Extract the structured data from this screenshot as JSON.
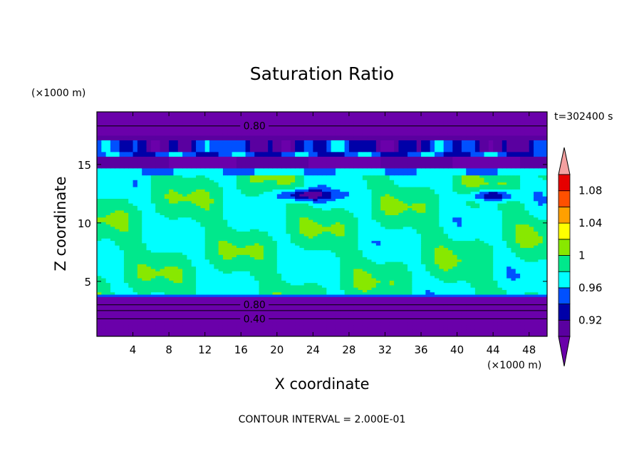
{
  "chart_data": {
    "type": "heatmap",
    "title": "Saturation Ratio",
    "xlabel": "X coordinate",
    "ylabel": "Z coordinate",
    "x_unit": "(×1000 m)",
    "y_unit": "(×1000 m)",
    "time_label": "t=302400 s",
    "footer": "CONTOUR INTERVAL = 2.000E-01",
    "xlim": [
      0,
      50
    ],
    "ylim": [
      0.3,
      19.5
    ],
    "x_ticks": [
      {
        "value": 4,
        "label": "4"
      },
      {
        "value": 8,
        "label": "8"
      },
      {
        "value": 12,
        "label": "12"
      },
      {
        "value": 16,
        "label": "16"
      },
      {
        "value": 20,
        "label": "20"
      },
      {
        "value": 24,
        "label": "24"
      },
      {
        "value": 28,
        "label": "28"
      },
      {
        "value": 32,
        "label": "32"
      },
      {
        "value": 36,
        "label": "36"
      },
      {
        "value": 40,
        "label": "40"
      },
      {
        "value": 44,
        "label": "44"
      },
      {
        "value": 48,
        "label": "48"
      }
    ],
    "y_ticks": [
      {
        "value": 5,
        "label": "5"
      },
      {
        "value": 10,
        "label": "10"
      },
      {
        "value": 15,
        "label": "15"
      }
    ],
    "colorbar": {
      "levels": [
        0.9,
        0.92,
        0.94,
        0.96,
        0.98,
        1.0,
        1.02,
        1.04,
        1.06,
        1.08,
        1.1
      ],
      "colors": [
        "#5a00a0",
        "#0000a8",
        "#0050ff",
        "#00ffff",
        "#00e88c",
        "#88e800",
        "#ffff00",
        "#ffa000",
        "#ff5000",
        "#e60000"
      ],
      "under_color": "#6a00aa",
      "over_color": "#f4a0a0",
      "labels": [
        {
          "value": 0.92,
          "label": "0.92"
        },
        {
          "value": 0.96,
          "label": "0.96"
        },
        {
          "value": 1.0,
          "label": "1"
        },
        {
          "value": 1.04,
          "label": "1.04"
        },
        {
          "value": 1.08,
          "label": "1.08"
        }
      ]
    },
    "contour_labels": [
      {
        "text": "0.80",
        "x": 17.5,
        "z": 18.3
      },
      {
        "text": "0.80",
        "x": 17.5,
        "z": 3.0
      },
      {
        "text": "0.40",
        "x": 17.5,
        "z": 1.8
      }
    ]
  }
}
